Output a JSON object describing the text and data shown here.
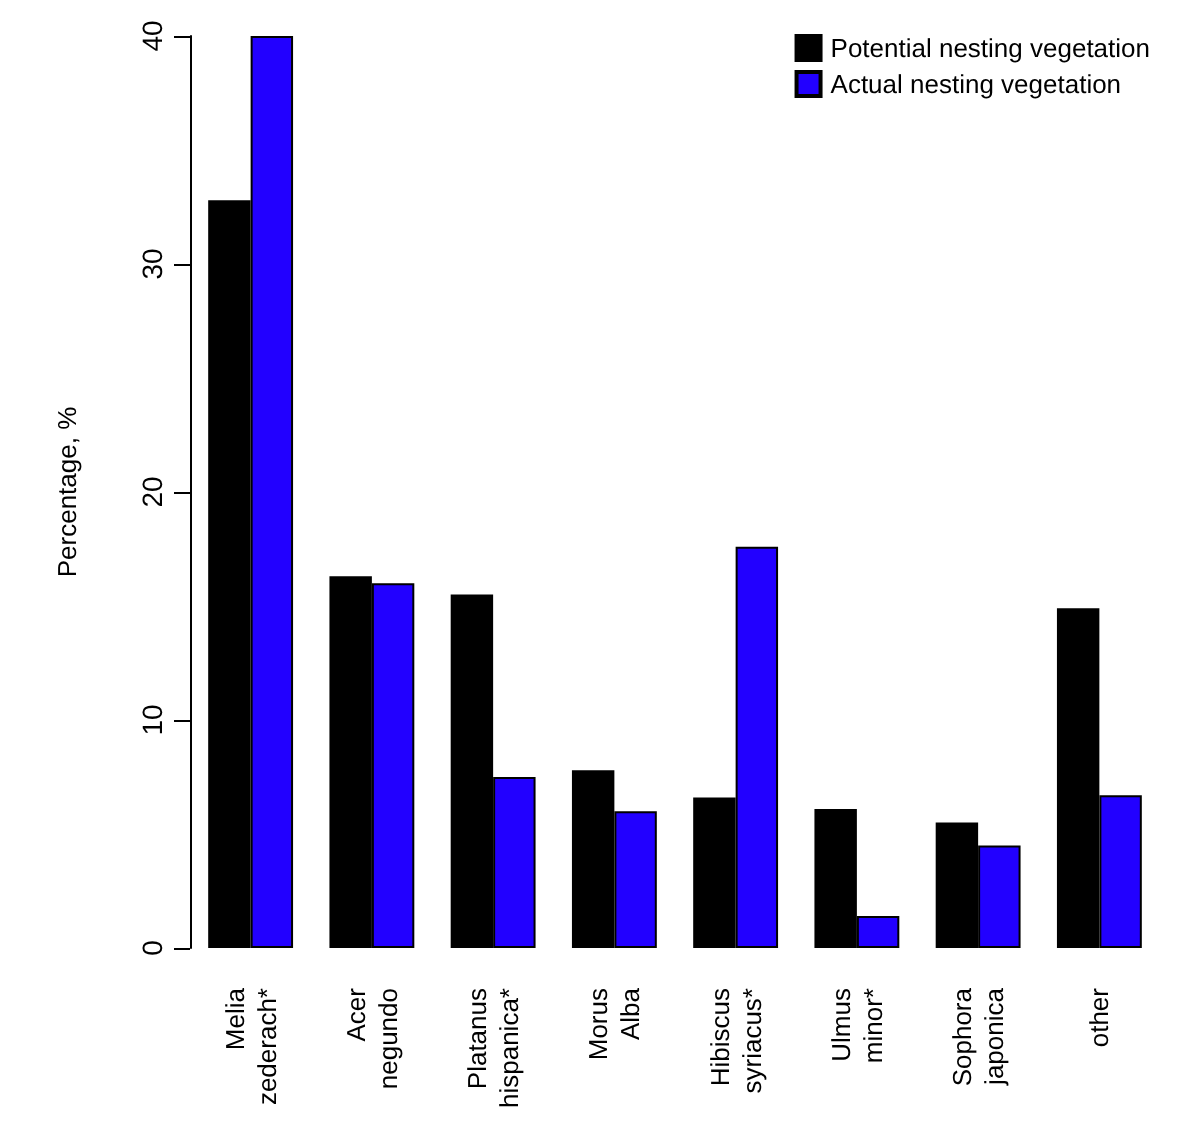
{
  "chart_data": {
    "type": "bar",
    "ylabel": "Percentage, %",
    "categories": [
      "Melia\nzederach*",
      "Acer\nnegundo",
      "Platanus\nhispanica*",
      "Morus\nAlba",
      "Hibiscus\nsyriacus*",
      "Ulmus\nminor*",
      "Sophora\njaponica",
      "other"
    ],
    "series": [
      {
        "name": "Potential nesting vegetation",
        "color": "#000000",
        "values": [
          32.8,
          16.3,
          15.5,
          7.8,
          6.6,
          6.1,
          5.5,
          14.9
        ]
      },
      {
        "name": "Actual nesting vegetation",
        "color": "#2200ff",
        "values": [
          40,
          16.0,
          7.5,
          6.0,
          17.6,
          1.4,
          4.5,
          6.7
        ]
      }
    ],
    "ylim": [
      0,
      40
    ],
    "yticks": [
      0,
      10,
      20,
      30,
      40
    ],
    "grid": false,
    "legend": "top right"
  }
}
